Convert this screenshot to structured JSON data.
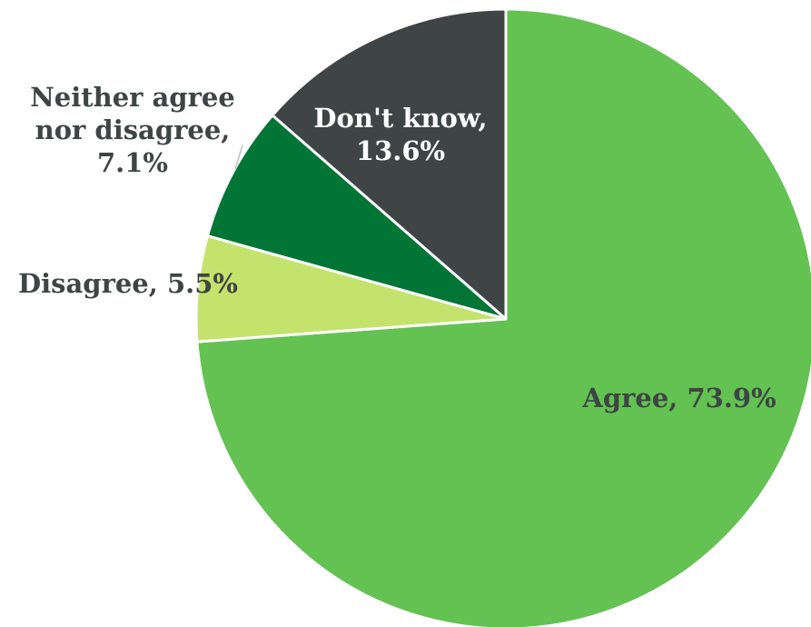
{
  "chart_data": {
    "type": "pie",
    "title": "",
    "slices": [
      {
        "label": "Agree",
        "value": 73.9,
        "display": "73.9%",
        "color": "#63c252",
        "text_color": "#3f4444"
      },
      {
        "label": "Disagree",
        "value": 5.5,
        "display": "5.5%",
        "color": "#c4e36d",
        "text_color": "#3f4444"
      },
      {
        "label": "Neither agree nor disagree",
        "value": 7.1,
        "display": "7.1%",
        "color": "#017535",
        "text_color": "#3f4444"
      },
      {
        "label": "Don't know",
        "value": 13.6,
        "display": "13.6%",
        "color": "#3f4444",
        "text_color": "#ffffff"
      }
    ],
    "data_labels": [
      {
        "lines": [
          "Agree, 73.9%"
        ]
      },
      {
        "lines": [
          "Disagree, 5.5%"
        ]
      },
      {
        "lines": [
          "Neither agree",
          "nor disagree,",
          "7.1%"
        ]
      },
      {
        "lines": [
          "Don't know,",
          "13.6%"
        ]
      }
    ]
  }
}
